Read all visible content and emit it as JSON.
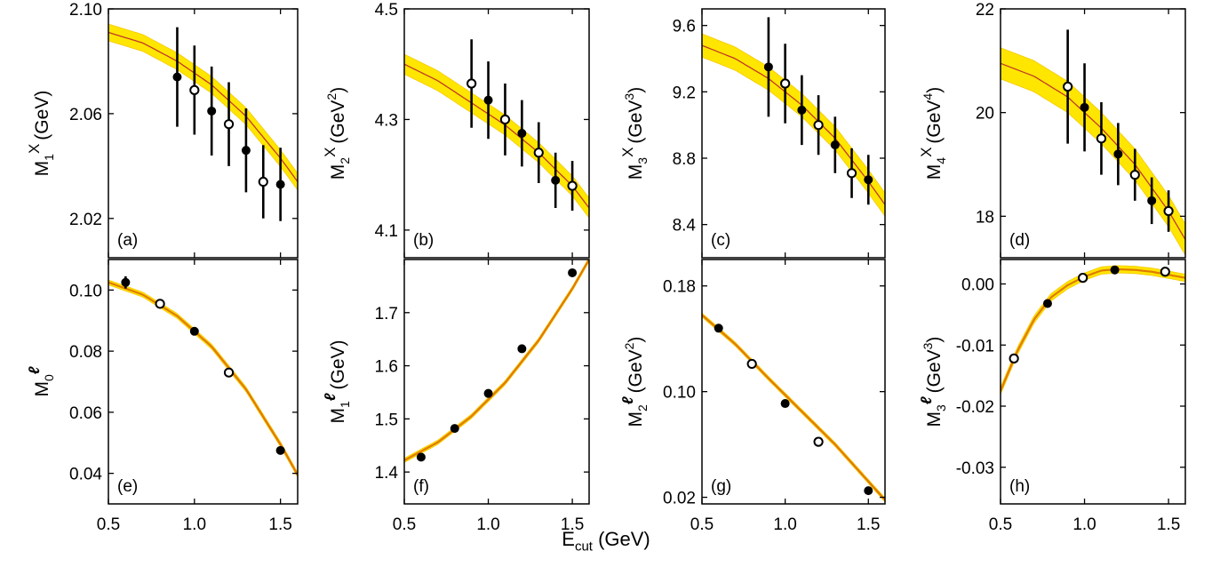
{
  "colors": {
    "band": "#FFE600",
    "band_edge": "#F5C800",
    "curve": "#C0392B",
    "curve_lepton": "#E07B00",
    "axis": "#000000"
  },
  "global_xlabel": {
    "main": "E",
    "sub": "cut",
    "unit": " (GeV)"
  },
  "chart_data": [
    {
      "id": "a",
      "type": "scatter",
      "panel_label": "(a)",
      "ylabel": {
        "base": "M",
        "sub": "1",
        "sup": "X",
        "unit": "(GeV)",
        "unit_sup": ""
      },
      "xlim": [
        0.5,
        1.6
      ],
      "ylim": [
        2.005,
        2.1
      ],
      "xticks": [],
      "yticks": [
        2.02,
        2.06,
        2.1
      ],
      "ytick_labels": [
        "2.02",
        "2.06",
        "2.10"
      ],
      "band_width": 0.0032,
      "curve": {
        "x": [
          0.5,
          0.7,
          0.9,
          1.1,
          1.3,
          1.5,
          1.6
        ],
        "y": [
          2.091,
          2.087,
          2.08,
          2.071,
          2.059,
          2.043,
          2.034
        ]
      },
      "points": [
        {
          "x": 0.9,
          "y": 2.074,
          "err": 0.019,
          "filled": true
        },
        {
          "x": 1.0,
          "y": 2.069,
          "err": 0.017,
          "filled": false
        },
        {
          "x": 1.1,
          "y": 2.061,
          "err": 0.017,
          "filled": true
        },
        {
          "x": 1.2,
          "y": 2.056,
          "err": 0.016,
          "filled": false
        },
        {
          "x": 1.3,
          "y": 2.046,
          "err": 0.016,
          "filled": true
        },
        {
          "x": 1.4,
          "y": 2.034,
          "err": 0.014,
          "filled": false
        },
        {
          "x": 1.5,
          "y": 2.033,
          "err": 0.014,
          "filled": true
        }
      ]
    },
    {
      "id": "b",
      "type": "scatter",
      "panel_label": "(b)",
      "ylabel": {
        "base": "M",
        "sub": "2",
        "sup": "X",
        "unit": "(GeV",
        "unit_sup": "2"
      },
      "xlim": [
        0.5,
        1.6
      ],
      "ylim": [
        4.05,
        4.5
      ],
      "xticks": [],
      "yticks": [
        4.1,
        4.3,
        4.5
      ],
      "ytick_labels": [
        "4.1",
        "4.3",
        "4.5"
      ],
      "band_width": 0.018,
      "curve": {
        "x": [
          0.5,
          0.7,
          0.9,
          1.1,
          1.3,
          1.5,
          1.6
        ],
        "y": [
          4.4,
          4.37,
          4.33,
          4.29,
          4.24,
          4.18,
          4.14
        ]
      },
      "points": [
        {
          "x": 0.9,
          "y": 4.365,
          "err": 0.08,
          "filled": false
        },
        {
          "x": 1.0,
          "y": 4.335,
          "err": 0.07,
          "filled": true
        },
        {
          "x": 1.1,
          "y": 4.3,
          "err": 0.065,
          "filled": false
        },
        {
          "x": 1.2,
          "y": 4.275,
          "err": 0.06,
          "filled": true
        },
        {
          "x": 1.3,
          "y": 4.24,
          "err": 0.055,
          "filled": false
        },
        {
          "x": 1.4,
          "y": 4.19,
          "err": 0.05,
          "filled": true
        },
        {
          "x": 1.5,
          "y": 4.18,
          "err": 0.045,
          "filled": false
        }
      ]
    },
    {
      "id": "c",
      "type": "scatter",
      "panel_label": "(c)",
      "ylabel": {
        "base": "M",
        "sub": "3",
        "sup": "X",
        "unit": "(GeV",
        "unit_sup": "3"
      },
      "xlim": [
        0.5,
        1.6
      ],
      "ylim": [
        8.2,
        9.7
      ],
      "xticks": [],
      "yticks": [
        8.4,
        8.8,
        9.2,
        9.6
      ],
      "ytick_labels": [
        "8.4",
        "8.8",
        "9.2",
        "9.6"
      ],
      "band_width": 0.07,
      "curve": {
        "x": [
          0.5,
          0.7,
          0.9,
          1.1,
          1.3,
          1.5,
          1.6
        ],
        "y": [
          9.48,
          9.4,
          9.28,
          9.12,
          8.92,
          8.66,
          8.52
        ]
      },
      "points": [
        {
          "x": 0.9,
          "y": 9.35,
          "err": 0.3,
          "filled": true
        },
        {
          "x": 1.0,
          "y": 9.25,
          "err": 0.24,
          "filled": false
        },
        {
          "x": 1.1,
          "y": 9.09,
          "err": 0.21,
          "filled": true
        },
        {
          "x": 1.2,
          "y": 9.0,
          "err": 0.18,
          "filled": false
        },
        {
          "x": 1.3,
          "y": 8.88,
          "err": 0.17,
          "filled": true
        },
        {
          "x": 1.4,
          "y": 8.71,
          "err": 0.15,
          "filled": false
        },
        {
          "x": 1.5,
          "y": 8.67,
          "err": 0.15,
          "filled": true
        }
      ]
    },
    {
      "id": "d",
      "type": "scatter",
      "panel_label": "(d)",
      "ylabel": {
        "base": "M",
        "sub": "4",
        "sup": "X",
        "unit": "(GeV",
        "unit_sup": "4"
      },
      "xlim": [
        0.5,
        1.6
      ],
      "ylim": [
        17.2,
        22
      ],
      "xticks": [],
      "yticks": [
        18,
        20,
        22
      ],
      "ytick_labels": [
        "18",
        "20",
        "22"
      ],
      "band_width": 0.3,
      "curve": {
        "x": [
          0.5,
          0.7,
          0.9,
          1.1,
          1.3,
          1.5,
          1.6
        ],
        "y": [
          20.95,
          20.7,
          20.3,
          19.7,
          19.0,
          18.1,
          17.55
        ]
      },
      "points": [
        {
          "x": 0.9,
          "y": 20.5,
          "err": 1.1,
          "filled": false
        },
        {
          "x": 1.0,
          "y": 20.1,
          "err": 0.85,
          "filled": true
        },
        {
          "x": 1.1,
          "y": 19.5,
          "err": 0.7,
          "filled": false
        },
        {
          "x": 1.2,
          "y": 19.2,
          "err": 0.6,
          "filled": true
        },
        {
          "x": 1.3,
          "y": 18.8,
          "err": 0.5,
          "filled": false
        },
        {
          "x": 1.4,
          "y": 18.3,
          "err": 0.45,
          "filled": true
        },
        {
          "x": 1.5,
          "y": 18.1,
          "err": 0.4,
          "filled": false
        }
      ]
    },
    {
      "id": "e",
      "type": "scatter",
      "panel_label": "(e)",
      "ylabel": {
        "base": "M",
        "sub": "0",
        "sup": "ℓ",
        "unit": "",
        "unit_sup": ""
      },
      "xlim": [
        0.5,
        1.6
      ],
      "ylim": [
        0.03,
        0.11
      ],
      "xticks": [
        0.5,
        1.0,
        1.5
      ],
      "xtick_labels": [
        "0.5",
        "1.0",
        "1.5"
      ],
      "yticks": [
        0.04,
        0.06,
        0.08,
        0.1
      ],
      "ytick_labels": [
        "0.04",
        "0.06",
        "0.08",
        "0.10"
      ],
      "band_width": 0.0008,
      "curve": {
        "x": [
          0.5,
          0.7,
          0.9,
          1.1,
          1.3,
          1.5,
          1.6
        ],
        "y": [
          0.1025,
          0.0985,
          0.0915,
          0.0815,
          0.0675,
          0.0495,
          0.0395
        ]
      },
      "points": [
        {
          "x": 0.6,
          "y": 0.1025,
          "err": 0.002,
          "filled": true
        },
        {
          "x": 0.8,
          "y": 0.0955,
          "err": 0.0008,
          "filled": false
        },
        {
          "x": 1.0,
          "y": 0.0865,
          "err": 0.0006,
          "filled": true
        },
        {
          "x": 1.2,
          "y": 0.073,
          "err": 0.0006,
          "filled": false
        },
        {
          "x": 1.5,
          "y": 0.0475,
          "err": 0.0006,
          "filled": true
        }
      ]
    },
    {
      "id": "f",
      "type": "scatter",
      "panel_label": "(f)",
      "ylabel": {
        "base": "M",
        "sub": "1",
        "sup": "ℓ",
        "unit": "(GeV)",
        "unit_sup": ""
      },
      "xlim": [
        0.5,
        1.6
      ],
      "ylim": [
        1.34,
        1.8
      ],
      "xticks": [
        0.5,
        1.0,
        1.5
      ],
      "xtick_labels": [
        "0.5",
        "1.0",
        "1.5"
      ],
      "yticks": [
        1.4,
        1.5,
        1.6,
        1.7
      ],
      "ytick_labels": [
        "1.4",
        "1.5",
        "1.6",
        "1.7"
      ],
      "band_width": 0.004,
      "curve": {
        "x": [
          0.5,
          0.7,
          0.9,
          1.1,
          1.3,
          1.5,
          1.6
        ],
        "y": [
          1.422,
          1.456,
          1.505,
          1.568,
          1.648,
          1.745,
          1.8
        ]
      },
      "points": [
        {
          "x": 0.6,
          "y": 1.428,
          "err": 0.004,
          "filled": true
        },
        {
          "x": 0.8,
          "y": 1.482,
          "err": 0.004,
          "filled": true
        },
        {
          "x": 1.0,
          "y": 1.548,
          "err": 0.004,
          "filled": true
        },
        {
          "x": 1.2,
          "y": 1.632,
          "err": 0.004,
          "filled": true
        },
        {
          "x": 1.5,
          "y": 1.775,
          "err": 0.005,
          "filled": true
        }
      ]
    },
    {
      "id": "g",
      "type": "scatter",
      "panel_label": "(g)",
      "ylabel": {
        "base": "M",
        "sub": "2",
        "sup": "ℓ",
        "unit": "(GeV",
        "unit_sup": "2"
      },
      "xlim": [
        0.5,
        1.6
      ],
      "ylim": [
        0.015,
        0.2
      ],
      "xticks": [
        0.5,
        1.0,
        1.5
      ],
      "xtick_labels": [
        "0.5",
        "1.0",
        "1.5"
      ],
      "yticks": [
        0.02,
        0.1,
        0.18
      ],
      "ytick_labels": [
        "0.02",
        "0.10",
        "0.18"
      ],
      "band_width": 0.0015,
      "curve": {
        "x": [
          0.5,
          0.7,
          0.9,
          1.1,
          1.3,
          1.5,
          1.6
        ],
        "y": [
          0.158,
          0.136,
          0.11,
          0.085,
          0.06,
          0.032,
          0.018
        ]
      },
      "points": [
        {
          "x": 0.6,
          "y": 0.148,
          "err": 0.002,
          "filled": true
        },
        {
          "x": 0.8,
          "y": 0.121,
          "err": 0.002,
          "filled": false
        },
        {
          "x": 1.0,
          "y": 0.091,
          "err": 0.002,
          "filled": true
        },
        {
          "x": 1.2,
          "y": 0.062,
          "err": 0.002,
          "filled": false
        },
        {
          "x": 1.5,
          "y": 0.025,
          "err": 0.002,
          "filled": true
        }
      ]
    },
    {
      "id": "h",
      "type": "scatter",
      "panel_label": "(h)",
      "ylabel": {
        "base": "M",
        "sub": "3",
        "sup": "ℓ",
        "unit": "(GeV",
        "unit_sup": "3"
      },
      "xlim": [
        0.5,
        1.6
      ],
      "ylim": [
        -0.036,
        0.004
      ],
      "xticks": [
        0.5,
        1.0,
        1.5
      ],
      "xtick_labels": [
        "0.5",
        "1.0",
        "1.5"
      ],
      "yticks": [
        -0.03,
        -0.02,
        -0.01,
        0.0
      ],
      "ytick_labels": [
        "-0.03",
        "-0.02",
        "-0.01",
        "0.00"
      ],
      "band_width": 0.0006,
      "curve": {
        "x": [
          0.5,
          0.6,
          0.7,
          0.8,
          0.9,
          1.0,
          1.1,
          1.2,
          1.3,
          1.4,
          1.5,
          1.6
        ],
        "y": [
          -0.0175,
          -0.011,
          -0.0058,
          -0.0022,
          -0.0002,
          0.0012,
          0.0022,
          0.0024,
          0.0023,
          0.002,
          0.0015,
          0.001
        ]
      },
      "points": [
        {
          "x": 0.58,
          "y": -0.0122,
          "err": 0.0005,
          "filled": false
        },
        {
          "x": 0.78,
          "y": -0.0032,
          "err": 0.0005,
          "filled": true
        },
        {
          "x": 0.99,
          "y": 0.001,
          "err": 0.0005,
          "filled": false
        },
        {
          "x": 1.18,
          "y": 0.0023,
          "err": 0.0005,
          "filled": true
        },
        {
          "x": 1.48,
          "y": 0.002,
          "err": 0.0005,
          "filled": false
        }
      ]
    }
  ]
}
